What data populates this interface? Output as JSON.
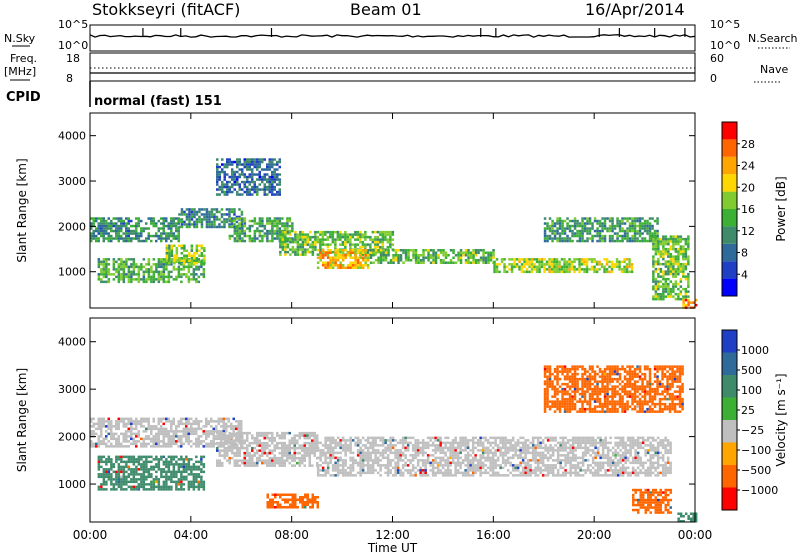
{
  "header": {
    "radar_title": "Stokkseyri (fitACF)",
    "beam": "Beam 01",
    "date": "16/Apr/2014"
  },
  "status_rows": {
    "nsky_label": "N.Sky",
    "nsky_ticks": [
      "10^5",
      "10^0"
    ],
    "nsearch_label": "N.Search",
    "nsearch_ticks": [
      "10^5",
      "10^0"
    ],
    "freq_label": "Freq.",
    "freq_unit": "[MHz]",
    "freq_ticks": [
      "18",
      "8"
    ],
    "nave_label": "Nave",
    "nave_ticks": [
      "60",
      "0"
    ],
    "cpid_label": "CPID",
    "cpid_text": "normal (fast) 151"
  },
  "x_axis": {
    "label": "Time UT",
    "ticks": [
      "00:00",
      "04:00",
      "08:00",
      "12:00",
      "16:00",
      "20:00",
      "00:00"
    ]
  },
  "colors": {
    "power": [
      "#0000ff",
      "#1f3fc4",
      "#2e6b9a",
      "#3d8b6a",
      "#3cb034",
      "#80cc30",
      "#ffd700",
      "#ffa500",
      "#ff6600",
      "#ff0000"
    ],
    "velocity": [
      "#1f3fc4",
      "#2e6b9a",
      "#3d8b6a",
      "#3cb034",
      "#bfbfbf",
      "#ffa500",
      "#ff6600",
      "#ff0000"
    ]
  },
  "chart_data": [
    {
      "type": "heatmap",
      "title": "Power",
      "ylabel": "Slant Range [km]",
      "xlabel": "",
      "ylim": [
        200,
        4500
      ],
      "y_ticks": [
        "1000",
        "2000",
        "3000",
        "4000"
      ],
      "colorbar_label": "Power [dB]",
      "colorbar_ticks": [
        "28",
        "24",
        "20",
        "16",
        "12",
        "8",
        "4"
      ],
      "colorbar_range": [
        0,
        32
      ],
      "bands": [
        {
          "x": [
            0.3,
            4.5
          ],
          "range": [
            800,
            1300
          ],
          "value": 14
        },
        {
          "x": [
            3.0,
            4.5
          ],
          "range": [
            1200,
            1600
          ],
          "value": 17
        },
        {
          "x": [
            0.0,
            3.5
          ],
          "range": [
            1700,
            2200
          ],
          "value": 11
        },
        {
          "x": [
            3.5,
            6.0
          ],
          "range": [
            2000,
            2400
          ],
          "value": 10
        },
        {
          "x": [
            5.5,
            8.0
          ],
          "range": [
            1700,
            2200
          ],
          "value": 13
        },
        {
          "x": [
            7.5,
            12.0
          ],
          "range": [
            1400,
            1900
          ],
          "value": 16
        },
        {
          "x": [
            9.0,
            11.0
          ],
          "range": [
            1100,
            1500
          ],
          "value": 22
        },
        {
          "x": [
            11.0,
            16.0
          ],
          "range": [
            1200,
            1500
          ],
          "value": 15
        },
        {
          "x": [
            16.0,
            21.5
          ],
          "range": [
            1000,
            1300
          ],
          "value": 18
        },
        {
          "x": [
            18.0,
            22.5
          ],
          "range": [
            1700,
            2200
          ],
          "value": 12
        },
        {
          "x": [
            5.0,
            7.5
          ],
          "range": [
            2700,
            3500
          ],
          "value": 8
        },
        {
          "x": [
            22.3,
            23.7
          ],
          "range": [
            400,
            1800
          ],
          "value": 16
        },
        {
          "x": [
            23.5,
            24.0
          ],
          "range": [
            200,
            400
          ],
          "value": 26
        }
      ]
    },
    {
      "type": "heatmap",
      "title": "Velocity",
      "ylabel": "Slant Range [km]",
      "xlabel": "Time UT",
      "ylim": [
        200,
        4500
      ],
      "y_ticks": [
        "1000",
        "2000",
        "3000",
        "4000"
      ],
      "colorbar_label": "Velocity [m s⁻¹]",
      "colorbar_ticks": [
        "1000",
        "500",
        "100",
        "25",
        "−25",
        "−100",
        "−500",
        "−1000"
      ],
      "bands": [
        {
          "x": [
            0.3,
            4.5
          ],
          "range": [
            900,
            1600
          ],
          "value": 150
        },
        {
          "x": [
            0.0,
            6.0
          ],
          "range": [
            1800,
            2400
          ],
          "value": 0
        },
        {
          "x": [
            5.0,
            9.0
          ],
          "range": [
            1400,
            2100
          ],
          "value": 0
        },
        {
          "x": [
            9.0,
            23.0
          ],
          "range": [
            1200,
            2000
          ],
          "value": 0
        },
        {
          "x": [
            7.0,
            9.0
          ],
          "range": [
            500,
            800
          ],
          "value": -150
        },
        {
          "x": [
            21.5,
            23.0
          ],
          "range": [
            400,
            900
          ],
          "value": -300
        },
        {
          "x": [
            23.3,
            24.0
          ],
          "range": [
            200,
            400
          ],
          "value": 200
        },
        {
          "x": [
            18.0,
            23.5
          ],
          "range": [
            2500,
            3500
          ],
          "value": -100
        }
      ]
    }
  ]
}
